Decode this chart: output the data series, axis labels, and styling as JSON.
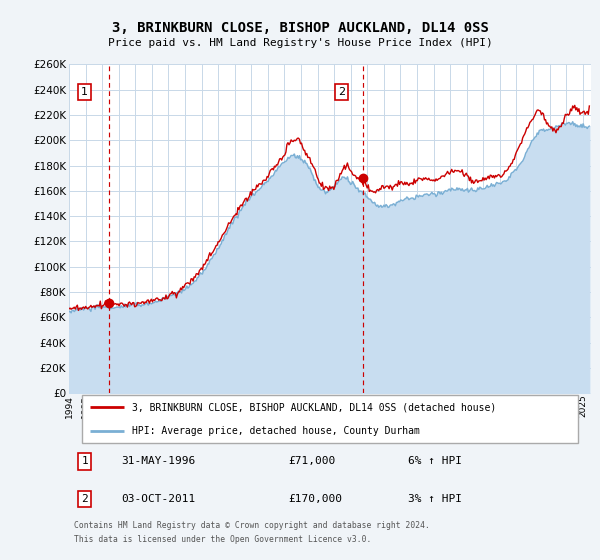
{
  "title": "3, BRINKBURN CLOSE, BISHOP AUCKLAND, DL14 0SS",
  "subtitle": "Price paid vs. HM Land Registry's House Price Index (HPI)",
  "bg_color": "#f0f4f8",
  "plot_bg_color": "#ffffff",
  "grid_color": "#c8d8e8",
  "hpi_fill_color": "#c8ddf0",
  "hpi_line_color": "#7aafd4",
  "price_color": "#cc0000",
  "ylim": [
    0,
    260000
  ],
  "yticks": [
    0,
    20000,
    40000,
    60000,
    80000,
    100000,
    120000,
    140000,
    160000,
    180000,
    200000,
    220000,
    240000,
    260000
  ],
  "xlim_start": 1994.0,
  "xlim_end": 2025.5,
  "sale1_x": 1996.42,
  "sale1_y": 71000,
  "sale2_x": 2011.75,
  "sale2_y": 170000,
  "vline1_x": 1996.42,
  "vline2_x": 2011.75,
  "legend_line1": "3, BRINKBURN CLOSE, BISHOP AUCKLAND, DL14 0SS (detached house)",
  "legend_line2": "HPI: Average price, detached house, County Durham",
  "annot1_num": "1",
  "annot1_date": "31-MAY-1996",
  "annot1_price": "£71,000",
  "annot1_hpi": "6% ↑ HPI",
  "annot2_num": "2",
  "annot2_date": "03-OCT-2011",
  "annot2_price": "£170,000",
  "annot2_hpi": "3% ↑ HPI",
  "footer": "Contains HM Land Registry data © Crown copyright and database right 2024.\nThis data is licensed under the Open Government Licence v3.0."
}
